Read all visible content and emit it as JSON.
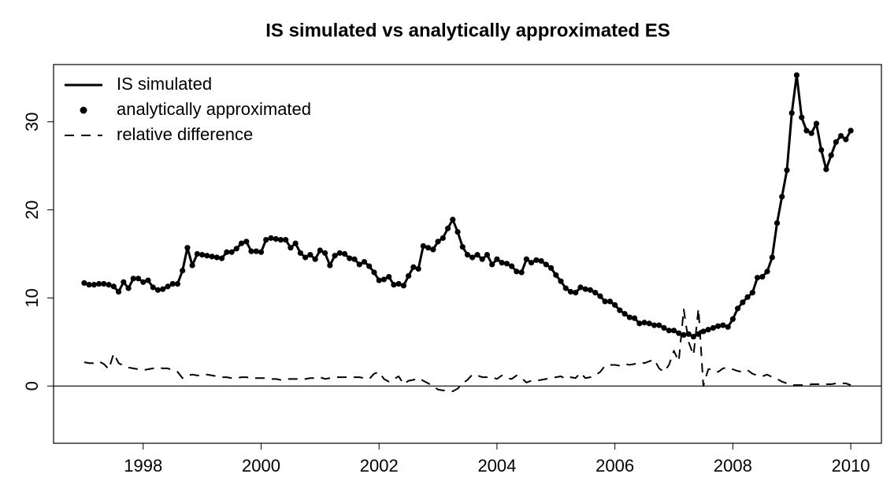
{
  "chart_data": {
    "type": "line",
    "title": "IS simulated vs analytically approximated ES",
    "x": [
      1997,
      1997.083,
      1997.167,
      1997.25,
      1997.333,
      1997.417,
      1997.5,
      1997.583,
      1997.667,
      1997.75,
      1997.833,
      1997.917,
      1998,
      1998.083,
      1998.167,
      1998.25,
      1998.333,
      1998.417,
      1998.5,
      1998.583,
      1998.667,
      1998.75,
      1998.833,
      1998.917,
      1999,
      1999.083,
      1999.167,
      1999.25,
      1999.333,
      1999.417,
      1999.5,
      1999.583,
      1999.667,
      1999.75,
      1999.833,
      1999.917,
      2000,
      2000.083,
      2000.167,
      2000.25,
      2000.333,
      2000.417,
      2000.5,
      2000.583,
      2000.667,
      2000.75,
      2000.833,
      2000.917,
      2001,
      2001.083,
      2001.167,
      2001.25,
      2001.333,
      2001.417,
      2001.5,
      2001.583,
      2001.667,
      2001.75,
      2001.833,
      2001.917,
      2002,
      2002.083,
      2002.167,
      2002.25,
      2002.333,
      2002.417,
      2002.5,
      2002.583,
      2002.667,
      2002.75,
      2002.833,
      2002.917,
      2003,
      2003.083,
      2003.167,
      2003.25,
      2003.333,
      2003.417,
      2003.5,
      2003.583,
      2003.667,
      2003.75,
      2003.833,
      2003.917,
      2004,
      2004.083,
      2004.167,
      2004.25,
      2004.333,
      2004.417,
      2004.5,
      2004.583,
      2004.667,
      2004.75,
      2004.833,
      2004.917,
      2005,
      2005.083,
      2005.167,
      2005.25,
      2005.333,
      2005.417,
      2005.5,
      2005.583,
      2005.667,
      2005.75,
      2005.833,
      2005.917,
      2006,
      2006.083,
      2006.167,
      2006.25,
      2006.333,
      2006.417,
      2006.5,
      2006.583,
      2006.667,
      2006.75,
      2006.833,
      2006.917,
      2007,
      2007.083,
      2007.167,
      2007.25,
      2007.333,
      2007.417,
      2007.5,
      2007.583,
      2007.667,
      2007.75,
      2007.833,
      2007.917,
      2008,
      2008.083,
      2008.167,
      2008.25,
      2008.333,
      2008.417,
      2008.5,
      2008.583,
      2008.667,
      2008.75,
      2008.833,
      2008.917,
      2009,
      2009.083,
      2009.167,
      2009.25,
      2009.333,
      2009.417,
      2009.5,
      2009.583,
      2009.667,
      2009.75,
      2009.833,
      2009.917,
      2010
    ],
    "series": [
      {
        "name": "IS simulated",
        "color": "#000000",
        "style": "line",
        "values": [
          11.7,
          11.5,
          11.5,
          11.6,
          11.6,
          11.5,
          11.3,
          10.7,
          11.8,
          11.1,
          12.2,
          12.2,
          11.8,
          12.0,
          11.2,
          10.9,
          11.0,
          11.3,
          11.6,
          11.6,
          13.1,
          15.7,
          13.7,
          15.0,
          14.9,
          14.8,
          14.7,
          14.6,
          14.5,
          15.2,
          15.2,
          15.6,
          16.2,
          16.4,
          15.3,
          15.3,
          15.2,
          16.6,
          16.8,
          16.7,
          16.6,
          16.6,
          15.7,
          16.2,
          15.1,
          14.6,
          14.9,
          14.4,
          15.4,
          15.1,
          13.7,
          14.8,
          15.1,
          15.0,
          14.5,
          14.4,
          13.8,
          14.1,
          13.6,
          12.9,
          12.0,
          12.1,
          12.4,
          11.5,
          11.6,
          11.4,
          12.5,
          13.5,
          13.3,
          15.9,
          15.7,
          15.5,
          16.4,
          16.8,
          17.9,
          18.9,
          17.5,
          15.8,
          14.9,
          14.6,
          14.9,
          14.4,
          14.9,
          13.8,
          14.4,
          14.0,
          13.9,
          13.6,
          13.0,
          12.9,
          14.4,
          14.0,
          14.3,
          14.2,
          13.8,
          13.4,
          12.6,
          11.9,
          11.1,
          10.7,
          10.6,
          11.2,
          11.0,
          10.9,
          10.6,
          10.2,
          9.6,
          9.6,
          9.2,
          8.6,
          8.2,
          7.8,
          7.7,
          7.1,
          7.2,
          7.1,
          6.9,
          6.9,
          6.6,
          6.3,
          6.3,
          6.0,
          5.8,
          5.9,
          5.6,
          5.9,
          6.2,
          6.4,
          6.6,
          6.8,
          6.9,
          6.7,
          7.6,
          8.8,
          9.5,
          10.1,
          10.6,
          12.3,
          12.4,
          13.0,
          14.6,
          18.5,
          21.5,
          24.5,
          31.0,
          35.3,
          30.5,
          29.0,
          28.7,
          29.8,
          26.8,
          24.6,
          26.2,
          27.7,
          28.4,
          28.0,
          29.0
        ]
      },
      {
        "name": "analytically approximated",
        "color": "#000000",
        "style": "points",
        "values": [
          11.7,
          11.5,
          11.5,
          11.6,
          11.6,
          11.5,
          11.3,
          10.7,
          11.8,
          11.1,
          12.2,
          12.2,
          11.8,
          12.0,
          11.2,
          10.9,
          11.0,
          11.3,
          11.6,
          11.6,
          13.1,
          15.7,
          13.7,
          15.0,
          14.9,
          14.8,
          14.7,
          14.6,
          14.5,
          15.2,
          15.2,
          15.6,
          16.2,
          16.4,
          15.3,
          15.3,
          15.2,
          16.6,
          16.8,
          16.7,
          16.6,
          16.6,
          15.7,
          16.2,
          15.1,
          14.6,
          14.9,
          14.4,
          15.4,
          15.1,
          13.7,
          14.8,
          15.1,
          15.0,
          14.5,
          14.4,
          13.8,
          14.1,
          13.6,
          12.9,
          12.0,
          12.1,
          12.4,
          11.5,
          11.6,
          11.4,
          12.5,
          13.5,
          13.3,
          15.9,
          15.7,
          15.5,
          16.4,
          16.8,
          17.9,
          18.9,
          17.5,
          15.8,
          14.9,
          14.6,
          14.9,
          14.4,
          14.9,
          13.8,
          14.4,
          14.0,
          13.9,
          13.6,
          13.0,
          12.9,
          14.4,
          14.0,
          14.3,
          14.2,
          13.8,
          13.4,
          12.6,
          11.9,
          11.1,
          10.7,
          10.6,
          11.2,
          11.0,
          10.9,
          10.6,
          10.2,
          9.6,
          9.6,
          9.2,
          8.6,
          8.2,
          7.8,
          7.7,
          7.1,
          7.2,
          7.1,
          6.9,
          6.9,
          6.6,
          6.3,
          6.3,
          6.0,
          5.8,
          5.9,
          5.6,
          5.9,
          6.2,
          6.4,
          6.6,
          6.8,
          6.9,
          6.7,
          7.6,
          8.8,
          9.5,
          10.1,
          10.6,
          12.3,
          12.4,
          13.0,
          14.6,
          18.5,
          21.5,
          24.5,
          31.0,
          35.3,
          30.5,
          29.0,
          28.7,
          29.8,
          26.8,
          24.6,
          26.2,
          27.7,
          28.4,
          28.0,
          29.0
        ]
      },
      {
        "name": "relative difference",
        "color": "#000000",
        "style": "dashed",
        "values": [
          2.7,
          2.6,
          2.6,
          2.8,
          2.5,
          1.9,
          3.7,
          2.6,
          2.3,
          2.1,
          2.0,
          1.9,
          1.8,
          1.9,
          2.0,
          2.1,
          2.0,
          2.0,
          1.8,
          1.6,
          0.9,
          1.2,
          1.3,
          1.2,
          1.2,
          1.3,
          1.2,
          1.1,
          1.0,
          1.0,
          0.9,
          0.9,
          1.0,
          1.0,
          0.9,
          0.9,
          0.9,
          0.9,
          0.8,
          0.8,
          0.7,
          0.8,
          0.8,
          0.8,
          0.8,
          0.8,
          0.9,
          0.9,
          1.0,
          0.8,
          0.9,
          1.0,
          1.0,
          1.0,
          1.0,
          1.0,
          1.0,
          0.9,
          0.8,
          1.4,
          1.6,
          0.8,
          0.5,
          0.8,
          1.1,
          0.2,
          0.6,
          0.7,
          0.9,
          0.6,
          0.3,
          0.0,
          -0.4,
          -0.5,
          -0.5,
          -0.6,
          -0.3,
          0.3,
          0.7,
          1.3,
          1.2,
          1.0,
          1.0,
          1.0,
          0.8,
          1.2,
          0.9,
          0.8,
          1.2,
          0.9,
          0.4,
          0.6,
          0.6,
          0.7,
          0.8,
          0.9,
          1.0,
          1.1,
          0.8,
          1.0,
          0.9,
          1.5,
          0.9,
          1.0,
          1.2,
          1.6,
          2.3,
          2.4,
          2.4,
          2.3,
          2.5,
          2.4,
          2.5,
          2.7,
          2.6,
          2.8,
          3.0,
          2.0,
          1.6,
          2.4,
          4.0,
          2.8,
          8.7,
          5.0,
          3.5,
          8.8,
          0.0,
          1.9,
          1.9,
          1.6,
          2.0,
          2.1,
          1.9,
          1.7,
          1.6,
          1.8,
          1.4,
          1.2,
          1.1,
          1.3,
          1.0,
          0.8,
          0.5,
          0.3,
          0.1,
          0.1,
          0.1,
          0.1,
          0.2,
          0.2,
          0.2,
          0.2,
          0.2,
          0.3,
          0.3,
          0.3,
          0.1
        ]
      }
    ],
    "hline": 0,
    "xlim": [
      1996.48,
      2010.52
    ],
    "xticks": [
      1998,
      2000,
      2002,
      2004,
      2006,
      2008,
      2010
    ],
    "ylim": [
      -6.5,
      36.5
    ],
    "yticks": [
      0,
      10,
      20,
      30
    ],
    "legend": "top-left"
  }
}
